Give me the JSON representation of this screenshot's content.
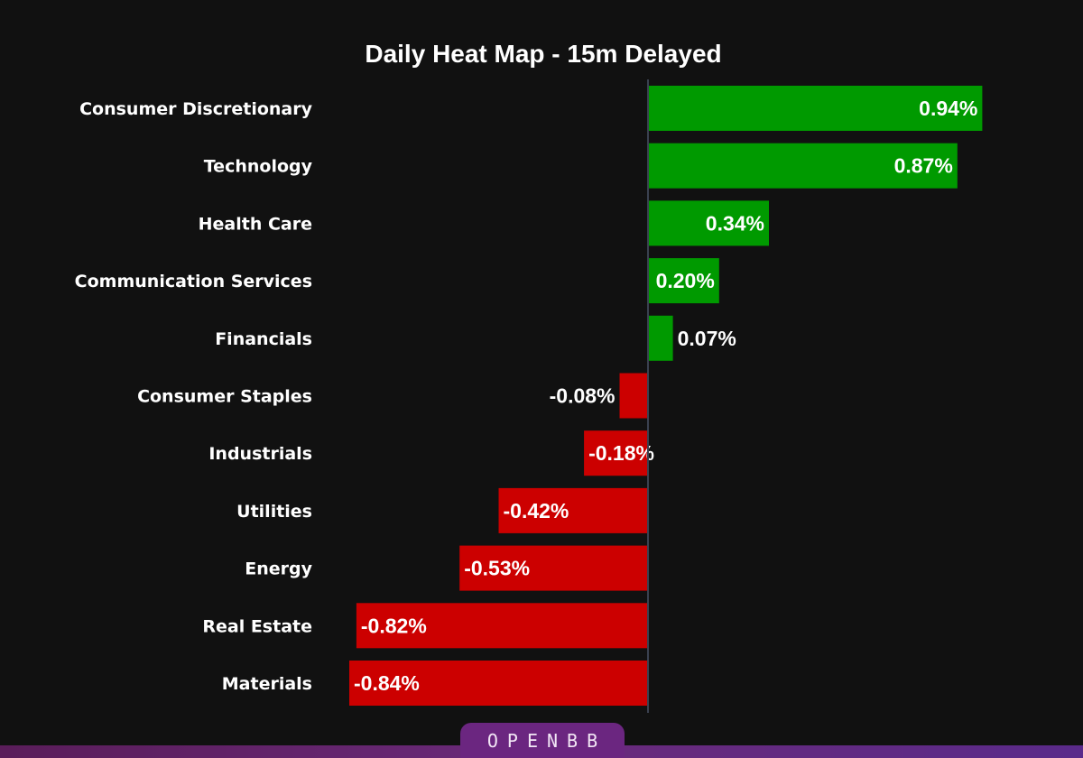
{
  "branding": {
    "logo_text": "OPENBB"
  },
  "colors": {
    "background": "#111111",
    "positive": "#009a00",
    "negative": "#cc0000",
    "axis": "#3a4150",
    "text": "#ffffff"
  },
  "chart_data": {
    "type": "bar",
    "orientation": "horizontal",
    "title": "Daily Heat Map - 15m Delayed",
    "xlabel": "",
    "ylabel": "",
    "unit": "%",
    "xlim": [
      -0.84,
      0.94
    ],
    "grid": false,
    "legend": "none",
    "categories": [
      "Consumer Discretionary",
      "Technology",
      "Health Care",
      "Communication Services",
      "Financials",
      "Consumer Staples",
      "Industrials",
      "Utilities",
      "Energy",
      "Real Estate",
      "Materials"
    ],
    "values": [
      0.94,
      0.87,
      0.34,
      0.2,
      0.07,
      -0.08,
      -0.18,
      -0.42,
      -0.53,
      -0.82,
      -0.84
    ],
    "value_labels": [
      "0.94%",
      "0.87%",
      "0.34%",
      "0.20%",
      "0.07%",
      "-0.08%",
      "-0.18%",
      "-0.42%",
      "-0.53%",
      "-0.82%",
      "-0.84%"
    ]
  }
}
